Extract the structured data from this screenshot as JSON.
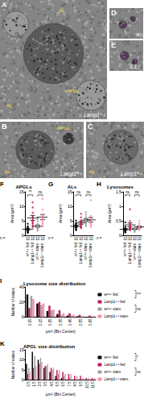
{
  "micrographs": [
    {
      "letter": "A",
      "genotype": "Lamp1⁶·¹",
      "labels": [
        "AL",
        "APGL",
        "AL"
      ]
    },
    {
      "letter": "D",
      "genotype": "w⁻"
    },
    {
      "letter": "E",
      "genotype": "6.1⁻/⁻"
    },
    {
      "letter": "B",
      "genotype": "Lamp1⁶·¹",
      "labels": [
        "APGL",
        "AL"
      ]
    },
    {
      "letter": "C",
      "genotype": "Lamp1⁶·¹",
      "labels": [
        "AL"
      ]
    }
  ],
  "chart_data": [
    {
      "panel": "F",
      "type": "scatter",
      "title": "APGLs",
      "y_label": "Area (µm²)",
      "categories": [
        "w¹¹¹⁸ fed",
        "Lamp1⁶·¹ fed",
        "w¹¹¹⁸ starv.",
        "Lamp1⁶·¹ starv."
      ],
      "colors": [
        "#000000",
        "#c2185b",
        "#9e9e9e",
        "#f48fb1"
      ],
      "values": [
        [
          1.2,
          1.8,
          2.5,
          3.1,
          0.9,
          2.2,
          1.5,
          4.0,
          2.8,
          1.1
        ],
        [
          3.5,
          5.2,
          7.8,
          4.1,
          9.6,
          6.3,
          2.8,
          11.4,
          5.0,
          4.4
        ],
        [
          2.0,
          3.4,
          1.6,
          4.8,
          2.7,
          3.9,
          2.2,
          5.5,
          3.0,
          2.6
        ],
        [
          4.2,
          6.8,
          3.1,
          8.9,
          5.4,
          12.6,
          4.7,
          7.3,
          3.8,
          6.1
        ]
      ],
      "mean": [
        2.11,
        6.01,
        3.17,
        6.29
      ],
      "error": [
        0.3,
        0.85,
        0.4,
        0.9
      ],
      "n_label": "n =",
      "n": [
        10,
        10,
        10,
        10
      ],
      "annotations": [
        {
          "text": "**",
          "between": [
            "w¹¹¹⁸ fed",
            "Lamp1⁶·¹ fed"
          ]
        },
        {
          "text": "ns",
          "between": [
            "w¹¹¹⁸ starv.",
            "Lamp1⁶·¹ starv."
          ]
        }
      ],
      "ylim": [
        0,
        15
      ],
      "yticks": [
        0,
        5,
        10,
        15
      ],
      "grid": false
    },
    {
      "panel": "G",
      "type": "scatter",
      "title": "ALs",
      "y_label": "Area (µm²)",
      "categories": [
        "w¹¹¹⁸ fed",
        "Lamp1⁶·¹ fed",
        "w¹¹¹⁸ starv.",
        "Lamp1⁶·¹ starv."
      ],
      "colors": [
        "#000000",
        "#c2185b",
        "#9e9e9e",
        "#f48fb1"
      ],
      "values": [
        [
          2.0,
          3.5,
          1.8,
          4.2,
          2.9,
          5.1,
          3.3,
          2.4,
          3.8,
          2.7
        ],
        [
          3.1,
          4.6,
          2.5,
          6.2,
          3.9,
          5.0,
          2.8,
          4.1,
          7.4,
          3.5
        ],
        [
          4.0,
          5.8,
          3.2,
          7.1,
          4.9,
          6.3,
          3.6,
          5.2,
          8.0,
          4.4
        ],
        [
          3.8,
          5.5,
          2.9,
          6.7,
          4.3,
          12.1,
          3.4,
          5.9,
          4.8,
          4.0
        ]
      ],
      "mean": [
        3.17,
        4.31,
        5.25,
        5.34
      ],
      "error": [
        0.33,
        0.5,
        0.5,
        0.8
      ],
      "n_label": "n =",
      "n": [
        10,
        10,
        10,
        10
      ],
      "annotations": [
        {
          "text": "ns",
          "between": [
            "w¹¹¹⁸ fed",
            "Lamp1⁶·¹ fed"
          ]
        },
        {
          "text": "ns",
          "between": [
            "w¹¹¹⁸ starv.",
            "Lamp1⁶·¹ starv."
          ]
        }
      ],
      "ylim": [
        0,
        15
      ],
      "yticks": [
        0,
        5,
        10,
        15
      ],
      "grid": false
    },
    {
      "panel": "H",
      "type": "scatter",
      "title": "Lysosomes",
      "y_label": "Area (µm²)",
      "categories": [
        "w¹¹¹⁸ fed",
        "Lamp1⁶·¹ fed",
        "w¹¹¹⁸ starv.",
        "Lamp1⁶·¹ starv."
      ],
      "colors": [
        "#000000",
        "#c2185b",
        "#9e9e9e",
        "#f48fb1"
      ],
      "values": [
        [
          0.12,
          0.18,
          0.25,
          0.15,
          0.3,
          0.22,
          0.1,
          0.45,
          0.2,
          0.16
        ],
        [
          0.2,
          0.35,
          0.28,
          0.5,
          0.18,
          0.42,
          0.31,
          0.9,
          0.25,
          0.22
        ],
        [
          0.15,
          0.22,
          0.3,
          0.19,
          0.26,
          0.12,
          0.35,
          0.21,
          0.17,
          0.24
        ],
        [
          0.18,
          0.3,
          0.25,
          0.4,
          0.22,
          0.33,
          0.2,
          0.28,
          0.5,
          0.26
        ]
      ],
      "mean": [
        0.21,
        0.36,
        0.22,
        0.29
      ],
      "error": [
        0.03,
        0.07,
        0.02,
        0.03
      ],
      "n_label": "n =",
      "n": [
        10,
        10,
        10,
        10
      ],
      "annotations": [
        {
          "text": "ns",
          "between": [
            "w¹¹¹⁸ fed",
            "Lamp1⁶·¹ fed"
          ]
        },
        {
          "text": "ns",
          "between": [
            "w¹¹¹⁸ starv.",
            "Lamp1⁶·¹ starv."
          ]
        }
      ],
      "ylim": [
        0,
        1.5
      ],
      "yticks": [
        0,
        0.5,
        1,
        1.5
      ],
      "grid": false
    },
    {
      "panel": "I",
      "type": "bar",
      "title": "Lysosome size distribution",
      "x_label": "µm² (Bin Center)",
      "y_label": "Number of values",
      "categories": [
        "0.05",
        "0.15",
        "0.25",
        "0.35",
        "0.45",
        "0.55",
        "0.65"
      ],
      "series": [
        {
          "name": "w¹¹¹⁸ fed",
          "color": "#000000",
          "values": [
            30,
            18,
            8,
            4,
            2,
            1,
            0
          ]
        },
        {
          "name": "Lamp1⁶·¹ fed",
          "color": "#c2185b",
          "values": [
            12,
            20,
            15,
            9,
            5,
            3,
            2
          ]
        },
        {
          "name": "w¹¹¹⁸ starv.",
          "color": "#9e9e9e",
          "values": [
            28,
            16,
            9,
            3,
            2,
            1,
            0
          ]
        },
        {
          "name": "Lamp1⁶·¹ starv.",
          "color": "#f48fb1",
          "values": [
            24,
            18,
            10,
            5,
            3,
            1,
            1
          ]
        }
      ],
      "annotations": [
        {
          "text": "***",
          "between": [
            "w¹¹¹⁸ fed",
            "Lamp1⁶·¹ fed"
          ]
        },
        {
          "text": "ns",
          "between": [
            "w¹¹¹⁸ starv.",
            "Lamp1⁶·¹ starv."
          ]
        }
      ],
      "ylim": [
        0,
        40
      ],
      "yticks": [
        0,
        20,
        40
      ],
      "legend": "right",
      "grid": false
    },
    {
      "panel": "K",
      "type": "bar",
      "title": "APGL size distribution",
      "x_label": "µm² (Bin Center)",
      "y_label": "Number of values",
      "categories": [
        "0.5",
        "1.5",
        "2.5",
        "3.5",
        "4.5",
        "5.5",
        "6.5",
        "7.5",
        "8.5",
        "9.5",
        "10.5",
        "11.5"
      ],
      "series": [
        {
          "name": "w¹¹¹⁸ fed",
          "color": "#000000",
          "values": [
            8,
            14,
            10,
            6,
            4,
            2,
            1,
            0,
            0,
            0,
            0,
            0
          ]
        },
        {
          "name": "Lamp1⁶·¹ fed",
          "color": "#c2185b",
          "values": [
            3,
            6,
            8,
            7,
            6,
            5,
            4,
            3,
            2,
            2,
            1,
            1
          ]
        },
        {
          "name": "w¹¹¹⁸ starv.",
          "color": "#9e9e9e",
          "values": [
            6,
            12,
            11,
            7,
            5,
            3,
            2,
            1,
            0,
            0,
            0,
            0
          ]
        },
        {
          "name": "Lamp1⁶·¹ starv.",
          "color": "#f48fb1",
          "values": [
            4,
            7,
            9,
            8,
            6,
            5,
            3,
            3,
            2,
            1,
            1,
            1
          ]
        }
      ],
      "annotations": [
        {
          "text": "*",
          "between": [
            "w¹¹¹⁸ fed",
            "Lamp1⁶·¹ fed"
          ]
        },
        {
          "text": "ns",
          "between": [
            "w¹¹¹⁸ starv.",
            "Lamp1⁶·¹ starv."
          ]
        }
      ],
      "ylim": [
        0,
        15
      ],
      "yticks": [
        0,
        5,
        10,
        15
      ],
      "legend": "right",
      "grid": false
    }
  ]
}
